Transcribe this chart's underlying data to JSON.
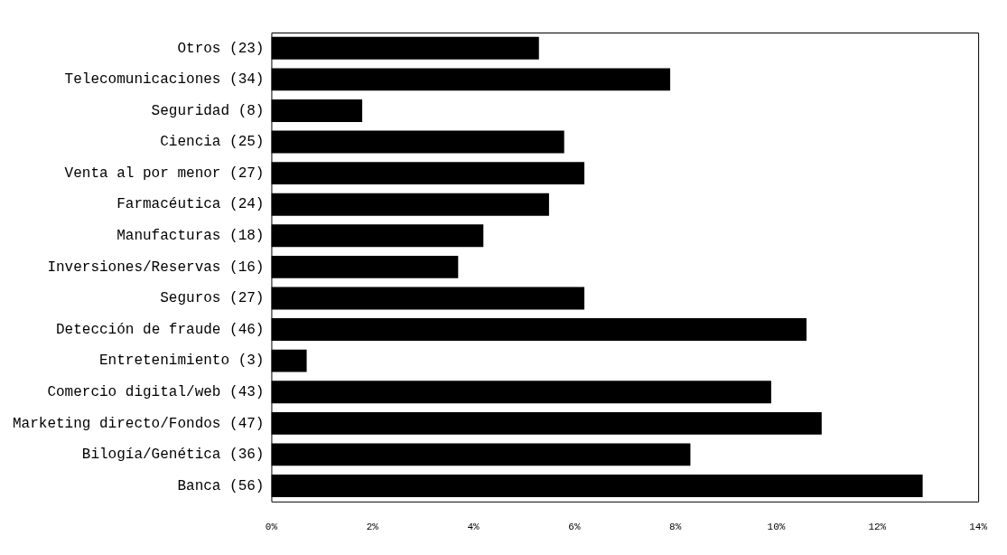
{
  "chart_data": {
    "type": "bar",
    "orientation": "horizontal",
    "categories": [
      "Otros (23)",
      "Telecomunicaciones (34)",
      "Seguridad (8)",
      "Ciencia (25)",
      "Venta al por menor (27)",
      "Farmacéutica (24)",
      "Manufacturas (18)",
      "Inversiones/Reservas (16)",
      "Seguros (27)",
      "Detección de fraude (46)",
      "Entretenimiento (3)",
      "Comercio digital/web (43)",
      "Marketing directo/Fondos (47)",
      "Bilogía/Genética (36)",
      "Banca (56)"
    ],
    "values": [
      5.3,
      7.9,
      1.8,
      5.8,
      6.2,
      5.5,
      4.2,
      3.7,
      6.2,
      10.6,
      0.7,
      9.9,
      10.9,
      8.3,
      12.9
    ],
    "color": "#000000",
    "xlim": [
      0,
      14
    ],
    "xticks": [
      {
        "value": 0,
        "label": "0%"
      },
      {
        "value": 2,
        "label": "2%"
      },
      {
        "value": 4,
        "label": "4%"
      },
      {
        "value": 6,
        "label": "6%"
      },
      {
        "value": 8,
        "label": "8%"
      },
      {
        "value": 10,
        "label": "10%"
      },
      {
        "value": 12,
        "label": "12%"
      },
      {
        "value": 14,
        "label": "14%"
      }
    ],
    "grid": false
  }
}
